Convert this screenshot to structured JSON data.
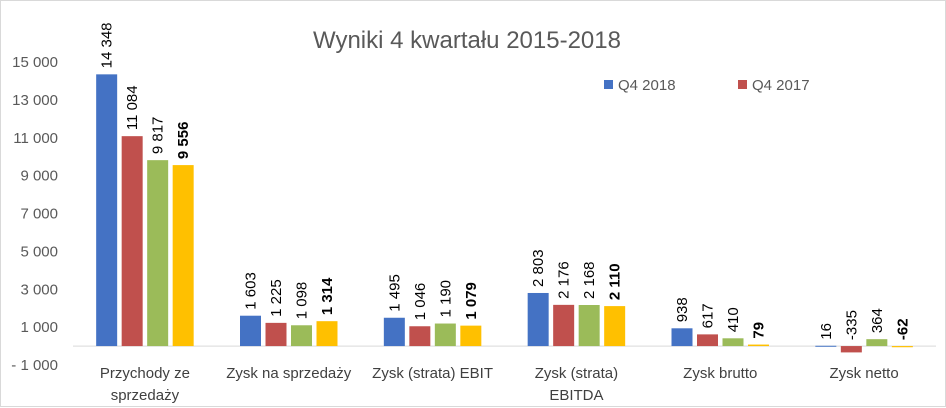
{
  "chart_data": {
    "type": "bar",
    "title": "Wyniki 4 kwartału 2015-2018",
    "categories": [
      [
        "Przychody ze",
        "sprzedaży"
      ],
      [
        "Zysk na sprzedaży"
      ],
      [
        "Zysk (strata) EBIT"
      ],
      [
        "Zysk (strata)",
        "EBITDA"
      ],
      [
        "Zysk brutto"
      ],
      [
        "Zysk netto"
      ]
    ],
    "series": [
      {
        "name": "Q4 2018",
        "color": "#4472c4",
        "values": [
          14348,
          1603,
          1495,
          2803,
          938,
          16
        ],
        "labels": [
          "14 348",
          "1 603",
          "1 495",
          "2 803",
          "938",
          "16"
        ]
      },
      {
        "name": "Q4 2017",
        "color": "#c0504d",
        "values": [
          11084,
          1225,
          1046,
          2176,
          617,
          -335
        ],
        "labels": [
          "11 084",
          "1 225",
          "1 046",
          "2 176",
          "617",
          "-335"
        ]
      },
      {
        "color": "#9bbb59",
        "values": [
          9817,
          1098,
          1190,
          2168,
          410,
          364
        ],
        "labels": [
          "9 817",
          "1 098",
          "1 190",
          "2 168",
          "410",
          "364"
        ]
      },
      {
        "color": "#ffc000",
        "values": [
          9556,
          1314,
          1079,
          2110,
          79,
          -62
        ],
        "labels": [
          "9 556",
          "1 314",
          "1 079",
          "2 110",
          "79",
          "-62"
        ],
        "bold_labels": true
      }
    ],
    "ylim": [
      -1000,
      15000
    ],
    "yticks": [
      -1000,
      1000,
      3000,
      5000,
      7000,
      9000,
      11000,
      13000,
      15000
    ],
    "ytick_labels": [
      "- 1 000",
      "1 000",
      "3 000",
      "5 000",
      "7 000",
      "9 000",
      "11 000",
      "13 000",
      "15 000"
    ],
    "grid": false,
    "legend": "top-right",
    "xlabel": "",
    "ylabel": ""
  }
}
